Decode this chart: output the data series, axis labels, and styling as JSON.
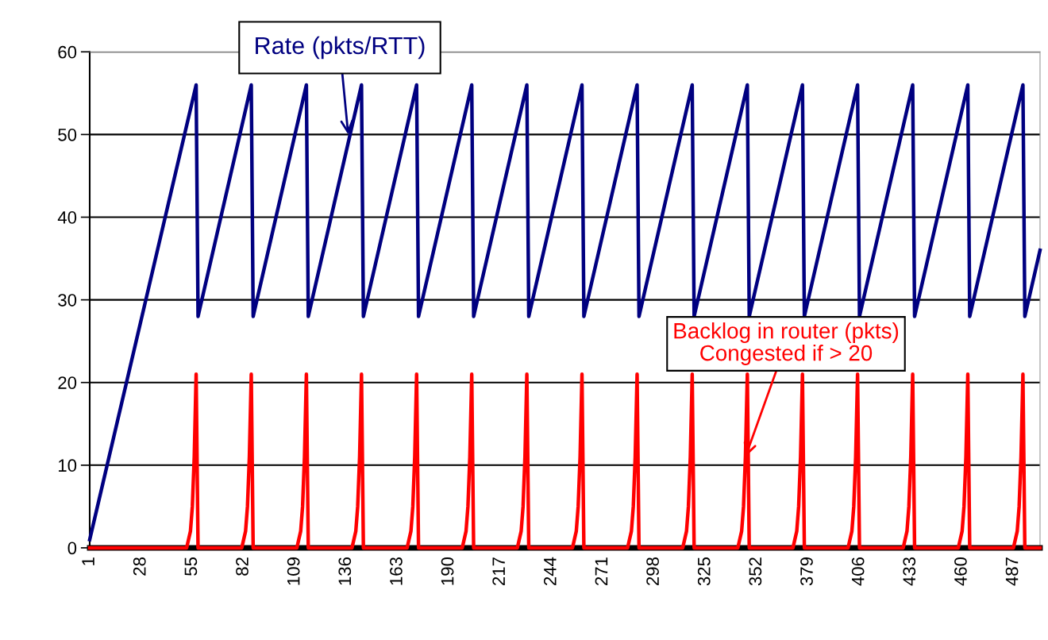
{
  "chart_data": {
    "type": "line",
    "xlim": [
      1,
      501
    ],
    "xticks": [
      1,
      28,
      55,
      82,
      109,
      136,
      163,
      190,
      217,
      244,
      271,
      298,
      325,
      352,
      379,
      406,
      433,
      460,
      487
    ],
    "ylim": [
      0,
      60
    ],
    "yticks": [
      0,
      10,
      20,
      30,
      40,
      50,
      60
    ],
    "grid": "y",
    "legend": false,
    "marker": "none",
    "line_style": "solid",
    "series": [
      {
        "color": "#000080",
        "x": [
          1,
          57,
          58,
          86,
          87,
          115,
          116,
          144,
          145,
          173,
          174,
          202,
          203,
          231,
          232,
          260,
          261,
          289,
          290,
          318,
          319,
          347,
          348,
          376,
          377,
          405,
          406,
          434,
          435,
          463,
          464,
          492,
          493,
          501
        ],
        "values": [
          1,
          56,
          28,
          56,
          28,
          56,
          28,
          56,
          28,
          56,
          28,
          56,
          28,
          56,
          28,
          56,
          28,
          56,
          28,
          56,
          28,
          56,
          28,
          56,
          28,
          56,
          28,
          56,
          28,
          56,
          28,
          56,
          28,
          36
        ]
      },
      {
        "color": "#ff0000",
        "x": [
          1,
          52,
          54,
          55,
          56,
          57,
          58,
          81,
          83,
          84,
          85,
          86,
          87,
          110,
          112,
          113,
          114,
          115,
          116,
          139,
          141,
          142,
          143,
          144,
          145,
          168,
          170,
          171,
          172,
          173,
          174,
          197,
          199,
          200,
          201,
          202,
          203,
          226,
          228,
          229,
          230,
          231,
          232,
          255,
          257,
          258,
          259,
          260,
          261,
          284,
          286,
          287,
          288,
          289,
          290,
          313,
          315,
          316,
          317,
          318,
          319,
          342,
          344,
          345,
          346,
          347,
          348,
          371,
          373,
          374,
          375,
          376,
          377,
          400,
          402,
          403,
          404,
          405,
          406,
          429,
          431,
          432,
          433,
          434,
          435,
          458,
          460,
          461,
          462,
          463,
          464,
          487,
          489,
          490,
          491,
          492,
          493,
          501
        ],
        "values": [
          0,
          0,
          2,
          5,
          11,
          21,
          0,
          0,
          2,
          5,
          11,
          21,
          0,
          0,
          2,
          5,
          11,
          21,
          0,
          0,
          2,
          5,
          11,
          21,
          0,
          0,
          2,
          5,
          11,
          21,
          0,
          0,
          2,
          5,
          11,
          21,
          0,
          0,
          2,
          5,
          11,
          21,
          0,
          0,
          2,
          5,
          11,
          21,
          0,
          0,
          2,
          5,
          11,
          21,
          0,
          0,
          2,
          5,
          11,
          21,
          0,
          0,
          2,
          5,
          11,
          21,
          0,
          0,
          2,
          5,
          11,
          21,
          0,
          0,
          2,
          5,
          11,
          21,
          0,
          0,
          2,
          5,
          11,
          21,
          0,
          0,
          2,
          5,
          11,
          21,
          0,
          0,
          2,
          5,
          11,
          21,
          0,
          0
        ]
      }
    ],
    "annotations": [
      {
        "text": "Rate (pkts/RTT)",
        "x": 137,
        "y": 50
      },
      {
        "text": "Backlog in router (pkts)\nCongested if > 20",
        "x": 346,
        "y": 11
      }
    ]
  }
}
